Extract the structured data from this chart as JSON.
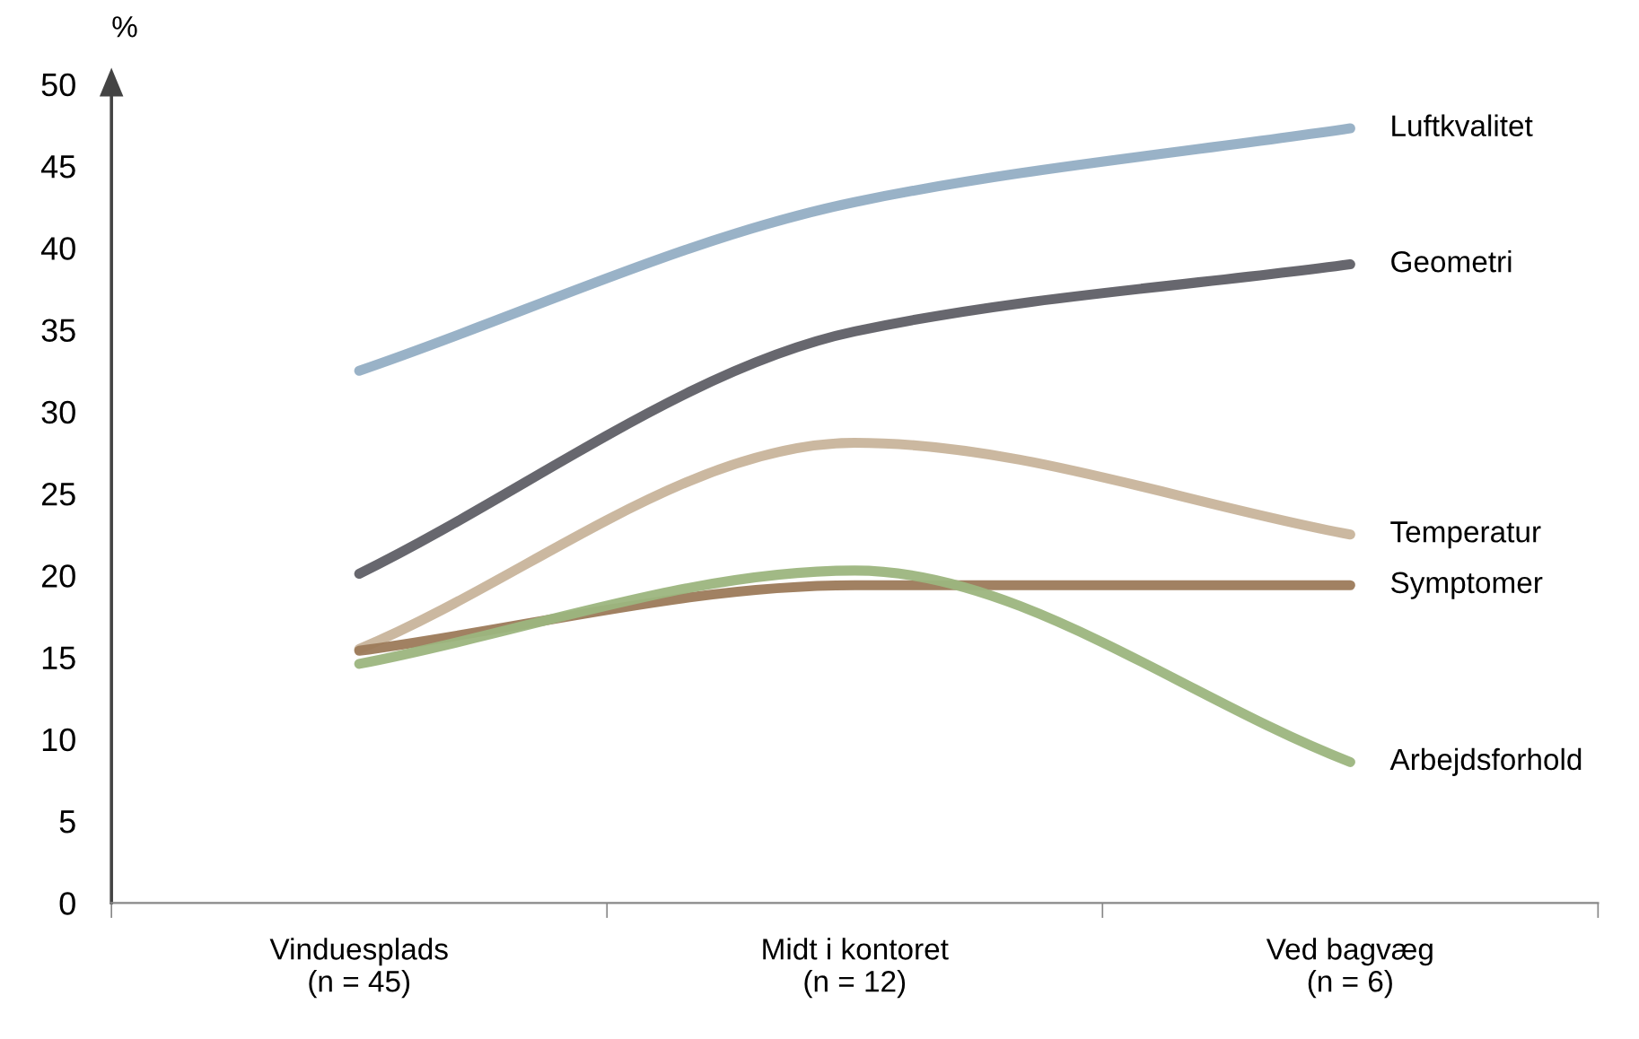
{
  "chart_data": {
    "type": "line",
    "ylabel": "%",
    "categories": [
      "Vinduesplads\n(n = 45)",
      "Midt i kontoret\n(n = 12)",
      "Ved bagvæg\n(n = 6)"
    ],
    "series": [
      {
        "name": "Luftkvalitet",
        "color": "#93aec4",
        "values": [
          32.5,
          42.8,
          47.3
        ]
      },
      {
        "name": "Geometri",
        "color": "#5f5f66",
        "values": [
          20.1,
          34.9,
          39.0
        ]
      },
      {
        "name": "Temperatur",
        "color": "#c8b49b",
        "values": [
          15.5,
          28.1,
          22.5
        ]
      },
      {
        "name": "Symptomer",
        "color": "#9c7a5a",
        "values": [
          15.4,
          19.4,
          19.4
        ]
      },
      {
        "name": "Arbejdsforhold",
        "color": "#9cb57e",
        "values": [
          14.6,
          20.3,
          8.6
        ]
      }
    ],
    "ylim": [
      0,
      50
    ],
    "yticks": [
      0,
      5,
      10,
      15,
      20,
      25,
      30,
      35,
      40,
      45,
      50
    ],
    "grid": false,
    "legend": false,
    "marker": "none",
    "line_style": "solid"
  }
}
